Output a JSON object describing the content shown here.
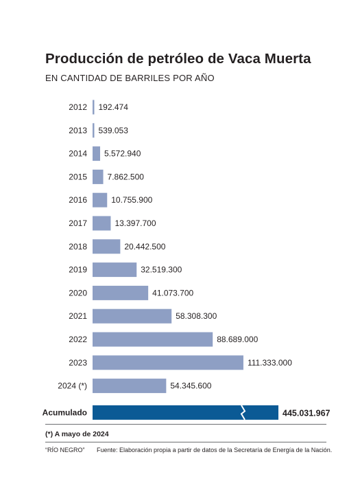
{
  "header": {
    "title": "Producción de petróleo de Vaca Muerta",
    "subtitle": "EN CANTIDAD DE BARRILES POR AÑO"
  },
  "chart_data": {
    "type": "bar",
    "orientation": "horizontal",
    "title": "Producción de petróleo de Vaca Muerta",
    "subtitle": "EN CANTIDAD DE BARRILES POR AÑO",
    "categories": [
      "2012",
      "2013",
      "2014",
      "2015",
      "2016",
      "2017",
      "2018",
      "2019",
      "2020",
      "2021",
      "2022",
      "2023",
      "2024 (*)"
    ],
    "values": [
      192474,
      539053,
      5572940,
      7862500,
      10755900,
      13397700,
      20442500,
      32519300,
      41073700,
      58308300,
      88689000,
      111333000,
      54345600
    ],
    "value_labels": [
      "192.474",
      "539.053",
      "5.572.940",
      "7.862.500",
      "10.755.900",
      "13.397.700",
      "20.442.500",
      "32.519.300",
      "41.073.700",
      "58.308.300",
      "88.689.000",
      "111.333.000",
      "54.345.600"
    ],
    "bar_color": "#8e9fc4",
    "total": {
      "label": "Acumulado",
      "value": 445031967,
      "value_label": "445.031.967",
      "color": "#0b5a95",
      "axis_break": true
    },
    "grid": false
  },
  "footer": {
    "note": "(*) A mayo de 2024",
    "credit": "“RÍO NEGRO”",
    "source": "Fuente: Elaboración propia a partir de datos de la Secretaría de Energía de la Nación."
  }
}
